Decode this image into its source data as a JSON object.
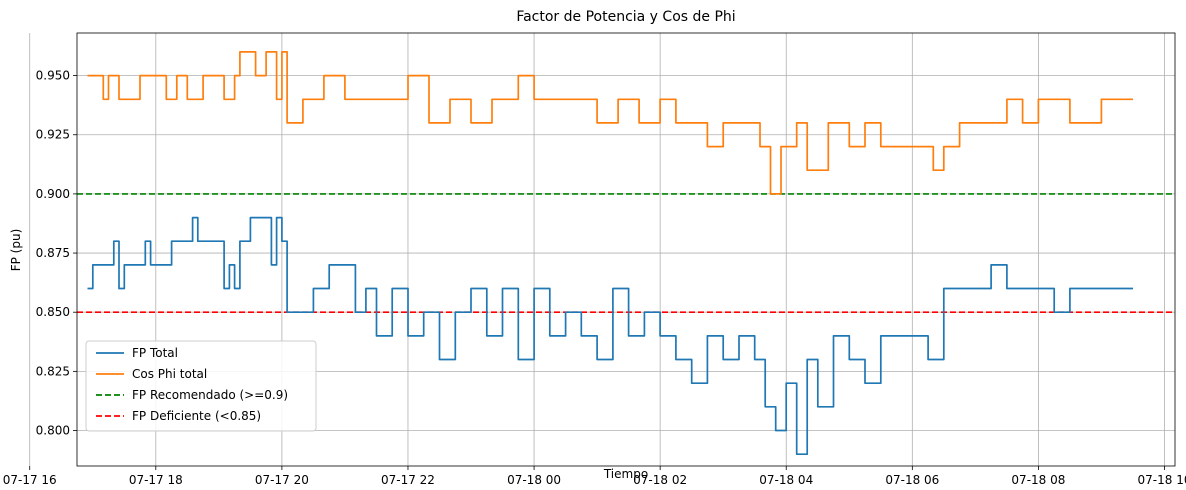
{
  "chart_data": {
    "type": "line",
    "title": "Factor de Potencia y Cos de Phi",
    "xlabel": "Tiempo",
    "ylabel": "FP (pu)",
    "xlim": [
      "07-17 16:45",
      "07-18 10:10"
    ],
    "ylim": [
      0.785,
      0.968
    ],
    "grid": true,
    "legend_position": "lower-left",
    "x_ticks": [
      "07-17 16",
      "07-17 18",
      "07-17 20",
      "07-17 22",
      "07-18 00",
      "07-18 02",
      "07-18 04",
      "07-18 06",
      "07-18 08",
      "07-18 10"
    ],
    "y_ticks": [
      "0.800",
      "0.825",
      "0.850",
      "0.875",
      "0.900",
      "0.925",
      "0.950"
    ],
    "series": [
      {
        "name": "FP Total",
        "color": "#1f77b4",
        "style": "solid",
        "points": [
          [
            "07-17 16:55",
            0.86
          ],
          [
            "07-17 17:00",
            0.87
          ],
          [
            "07-17 17:15",
            0.87
          ],
          [
            "07-17 17:20",
            0.88
          ],
          [
            "07-17 17:25",
            0.86
          ],
          [
            "07-17 17:30",
            0.87
          ],
          [
            "07-17 17:45",
            0.87
          ],
          [
            "07-17 17:50",
            0.88
          ],
          [
            "07-17 17:55",
            0.87
          ],
          [
            "07-17 18:00",
            0.87
          ],
          [
            "07-17 18:15",
            0.88
          ],
          [
            "07-17 18:30",
            0.88
          ],
          [
            "07-17 18:35",
            0.89
          ],
          [
            "07-17 18:40",
            0.88
          ],
          [
            "07-17 19:00",
            0.88
          ],
          [
            "07-17 19:05",
            0.86
          ],
          [
            "07-17 19:10",
            0.87
          ],
          [
            "07-17 19:15",
            0.86
          ],
          [
            "07-17 19:20",
            0.88
          ],
          [
            "07-17 19:30",
            0.89
          ],
          [
            "07-17 19:45",
            0.89
          ],
          [
            "07-17 19:50",
            0.87
          ],
          [
            "07-17 19:55",
            0.89
          ],
          [
            "07-17 20:00",
            0.88
          ],
          [
            "07-17 20:05",
            0.85
          ],
          [
            "07-17 20:20",
            0.85
          ],
          [
            "07-17 20:30",
            0.86
          ],
          [
            "07-17 20:45",
            0.87
          ],
          [
            "07-17 21:00",
            0.87
          ],
          [
            "07-17 21:10",
            0.85
          ],
          [
            "07-17 21:20",
            0.86
          ],
          [
            "07-17 21:30",
            0.84
          ],
          [
            "07-17 21:45",
            0.86
          ],
          [
            "07-17 22:00",
            0.84
          ],
          [
            "07-17 22:15",
            0.85
          ],
          [
            "07-17 22:30",
            0.83
          ],
          [
            "07-17 22:45",
            0.85
          ],
          [
            "07-17 23:00",
            0.86
          ],
          [
            "07-17 23:15",
            0.84
          ],
          [
            "07-17 23:30",
            0.86
          ],
          [
            "07-17 23:45",
            0.83
          ],
          [
            "07-18 00:00",
            0.86
          ],
          [
            "07-18 00:15",
            0.84
          ],
          [
            "07-18 00:30",
            0.85
          ],
          [
            "07-18 00:45",
            0.84
          ],
          [
            "07-18 01:00",
            0.83
          ],
          [
            "07-18 01:15",
            0.86
          ],
          [
            "07-18 01:30",
            0.84
          ],
          [
            "07-18 01:45",
            0.85
          ],
          [
            "07-18 02:00",
            0.84
          ],
          [
            "07-18 02:15",
            0.83
          ],
          [
            "07-18 02:30",
            0.82
          ],
          [
            "07-18 02:45",
            0.84
          ],
          [
            "07-18 03:00",
            0.83
          ],
          [
            "07-18 03:15",
            0.84
          ],
          [
            "07-18 03:30",
            0.83
          ],
          [
            "07-18 03:40",
            0.81
          ],
          [
            "07-18 03:50",
            0.8
          ],
          [
            "07-18 04:00",
            0.82
          ],
          [
            "07-18 04:10",
            0.79
          ],
          [
            "07-18 04:20",
            0.83
          ],
          [
            "07-18 04:30",
            0.81
          ],
          [
            "07-18 04:45",
            0.84
          ],
          [
            "07-18 05:00",
            0.83
          ],
          [
            "07-18 05:15",
            0.82
          ],
          [
            "07-18 05:30",
            0.84
          ],
          [
            "07-18 05:45",
            0.84
          ],
          [
            "07-18 06:00",
            0.84
          ],
          [
            "07-18 06:15",
            0.83
          ],
          [
            "07-18 06:30",
            0.86
          ],
          [
            "07-18 07:00",
            0.86
          ],
          [
            "07-18 07:15",
            0.87
          ],
          [
            "07-18 07:30",
            0.86
          ],
          [
            "07-18 08:00",
            0.86
          ],
          [
            "07-18 08:15",
            0.85
          ],
          [
            "07-18 08:30",
            0.86
          ],
          [
            "07-18 09:00",
            0.86
          ],
          [
            "07-18 09:30",
            0.86
          ]
        ]
      },
      {
        "name": "Cos Phi total",
        "color": "#ff7f0e",
        "style": "solid",
        "points": [
          [
            "07-17 16:55",
            0.95
          ],
          [
            "07-17 17:10",
            0.94
          ],
          [
            "07-17 17:15",
            0.95
          ],
          [
            "07-17 17:25",
            0.94
          ],
          [
            "07-17 17:45",
            0.95
          ],
          [
            "07-17 18:00",
            0.95
          ],
          [
            "07-17 18:10",
            0.94
          ],
          [
            "07-17 18:20",
            0.95
          ],
          [
            "07-17 18:30",
            0.94
          ],
          [
            "07-17 18:45",
            0.95
          ],
          [
            "07-17 19:00",
            0.95
          ],
          [
            "07-17 19:05",
            0.94
          ],
          [
            "07-17 19:15",
            0.95
          ],
          [
            "07-17 19:20",
            0.96
          ],
          [
            "07-17 19:35",
            0.95
          ],
          [
            "07-17 19:45",
            0.96
          ],
          [
            "07-17 19:55",
            0.94
          ],
          [
            "07-17 20:00",
            0.96
          ],
          [
            "07-17 20:05",
            0.93
          ],
          [
            "07-17 20:20",
            0.94
          ],
          [
            "07-17 20:40",
            0.95
          ],
          [
            "07-17 21:00",
            0.94
          ],
          [
            "07-17 21:30",
            0.94
          ],
          [
            "07-17 22:00",
            0.95
          ],
          [
            "07-17 22:20",
            0.93
          ],
          [
            "07-17 22:40",
            0.94
          ],
          [
            "07-17 23:00",
            0.93
          ],
          [
            "07-17 23:20",
            0.94
          ],
          [
            "07-17 23:45",
            0.95
          ],
          [
            "07-18 00:00",
            0.94
          ],
          [
            "07-18 00:30",
            0.94
          ],
          [
            "07-18 01:00",
            0.93
          ],
          [
            "07-18 01:20",
            0.94
          ],
          [
            "07-18 01:40",
            0.93
          ],
          [
            "07-18 02:00",
            0.94
          ],
          [
            "07-18 02:15",
            0.93
          ],
          [
            "07-18 02:30",
            0.93
          ],
          [
            "07-18 02:45",
            0.92
          ],
          [
            "07-18 03:00",
            0.93
          ],
          [
            "07-18 03:20",
            0.93
          ],
          [
            "07-18 03:35",
            0.92
          ],
          [
            "07-18 03:45",
            0.9
          ],
          [
            "07-18 03:55",
            0.92
          ],
          [
            "07-18 04:10",
            0.93
          ],
          [
            "07-18 04:20",
            0.91
          ],
          [
            "07-18 04:40",
            0.93
          ],
          [
            "07-18 05:00",
            0.92
          ],
          [
            "07-18 05:15",
            0.93
          ],
          [
            "07-18 05:30",
            0.92
          ],
          [
            "07-18 06:00",
            0.92
          ],
          [
            "07-18 06:20",
            0.91
          ],
          [
            "07-18 06:30",
            0.92
          ],
          [
            "07-18 06:45",
            0.93
          ],
          [
            "07-18 07:00",
            0.93
          ],
          [
            "07-18 07:30",
            0.94
          ],
          [
            "07-18 07:45",
            0.93
          ],
          [
            "07-18 08:00",
            0.94
          ],
          [
            "07-18 08:30",
            0.93
          ],
          [
            "07-18 09:00",
            0.94
          ],
          [
            "07-18 09:30",
            0.94
          ]
        ]
      },
      {
        "name": "FP Recomendado (>=0.9)",
        "color": "#008000",
        "style": "dashed",
        "y": 0.9
      },
      {
        "name": "FP Deficiente (<0.85)",
        "color": "#ff0000",
        "style": "dashed",
        "y": 0.85
      }
    ]
  }
}
